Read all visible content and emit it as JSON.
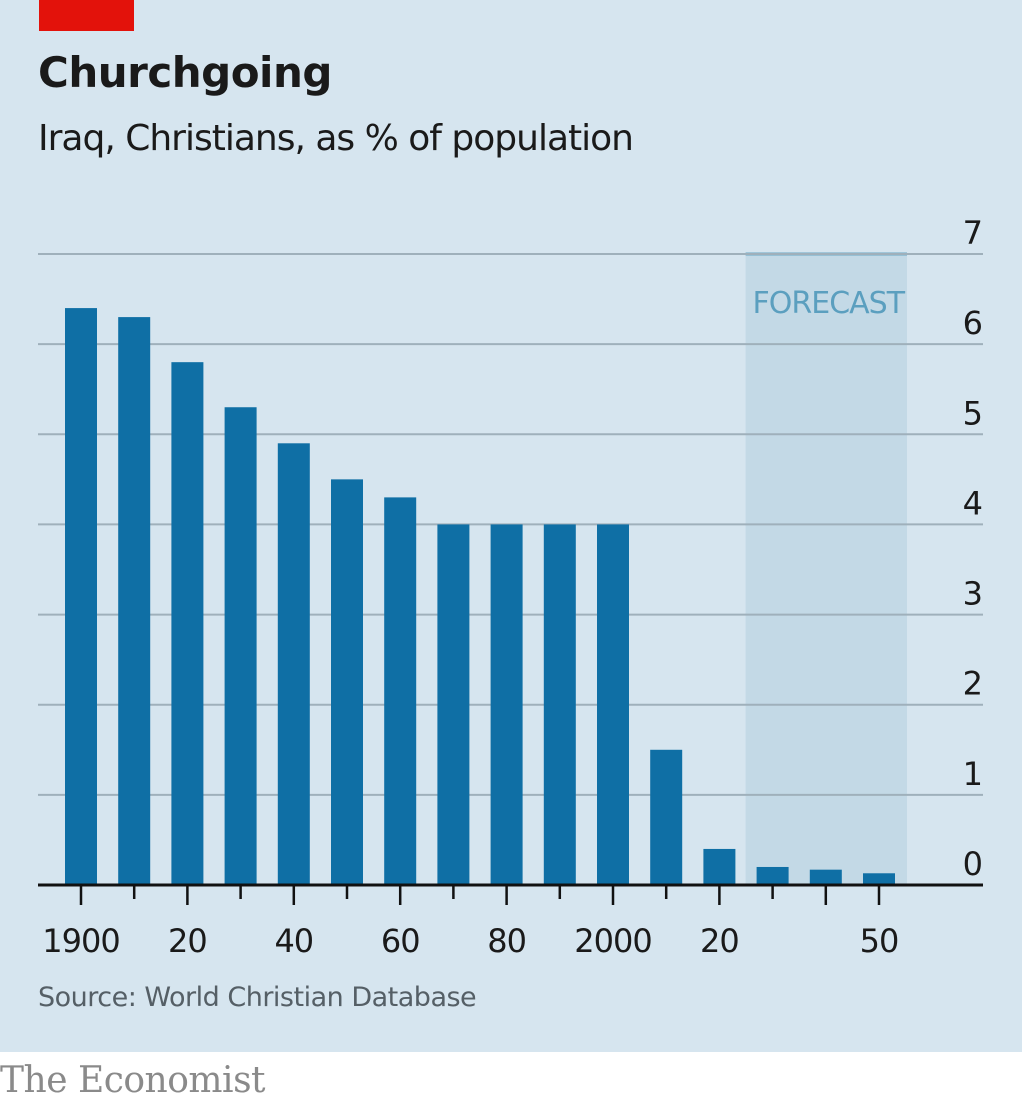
{
  "header": {
    "title": "Churchgoing",
    "subtitle": "Iraq, Christians, as % of population"
  },
  "footer": {
    "source": "Source: World Christian Database",
    "brand": "The Economist"
  },
  "colors": {
    "background": "#d6e5ef",
    "bar": "#0f6fa5",
    "forecast_shade": "#c3d9e6",
    "forecast_text": "#5b9fbf",
    "accent_red": "#e3120b"
  },
  "chart_data": {
    "type": "bar",
    "title": "Churchgoing",
    "subtitle": "Iraq, Christians, as % of population",
    "xlabel": "",
    "ylabel": "% of population",
    "x": [
      1900,
      1910,
      1920,
      1930,
      1940,
      1950,
      1960,
      1970,
      1980,
      1990,
      2000,
      2010,
      2020,
      2030,
      2040,
      2050
    ],
    "values": [
      6.4,
      6.3,
      5.8,
      5.3,
      4.9,
      4.5,
      4.3,
      4.0,
      4.0,
      4.0,
      4.0,
      1.5,
      0.4,
      0.2,
      0.17,
      0.13
    ],
    "ylim": [
      0,
      7
    ],
    "yticks": [
      0,
      1,
      2,
      3,
      4,
      5,
      6,
      7
    ],
    "ytick_labels": [
      "0",
      "1",
      "2",
      "3",
      "4",
      "5",
      "6",
      "7"
    ],
    "ytick_position": "right",
    "xtick_labels": [
      {
        "year": 1900,
        "label": "1900"
      },
      {
        "year": 1920,
        "label": "20"
      },
      {
        "year": 1940,
        "label": "40"
      },
      {
        "year": 1960,
        "label": "60"
      },
      {
        "year": 1980,
        "label": "80"
      },
      {
        "year": 2000,
        "label": "2000"
      },
      {
        "year": 2020,
        "label": "20"
      },
      {
        "year": 2050,
        "label": "50"
      }
    ],
    "grid": true,
    "forecast": {
      "label": "FORECAST",
      "start": 2030,
      "end": 2050
    }
  }
}
